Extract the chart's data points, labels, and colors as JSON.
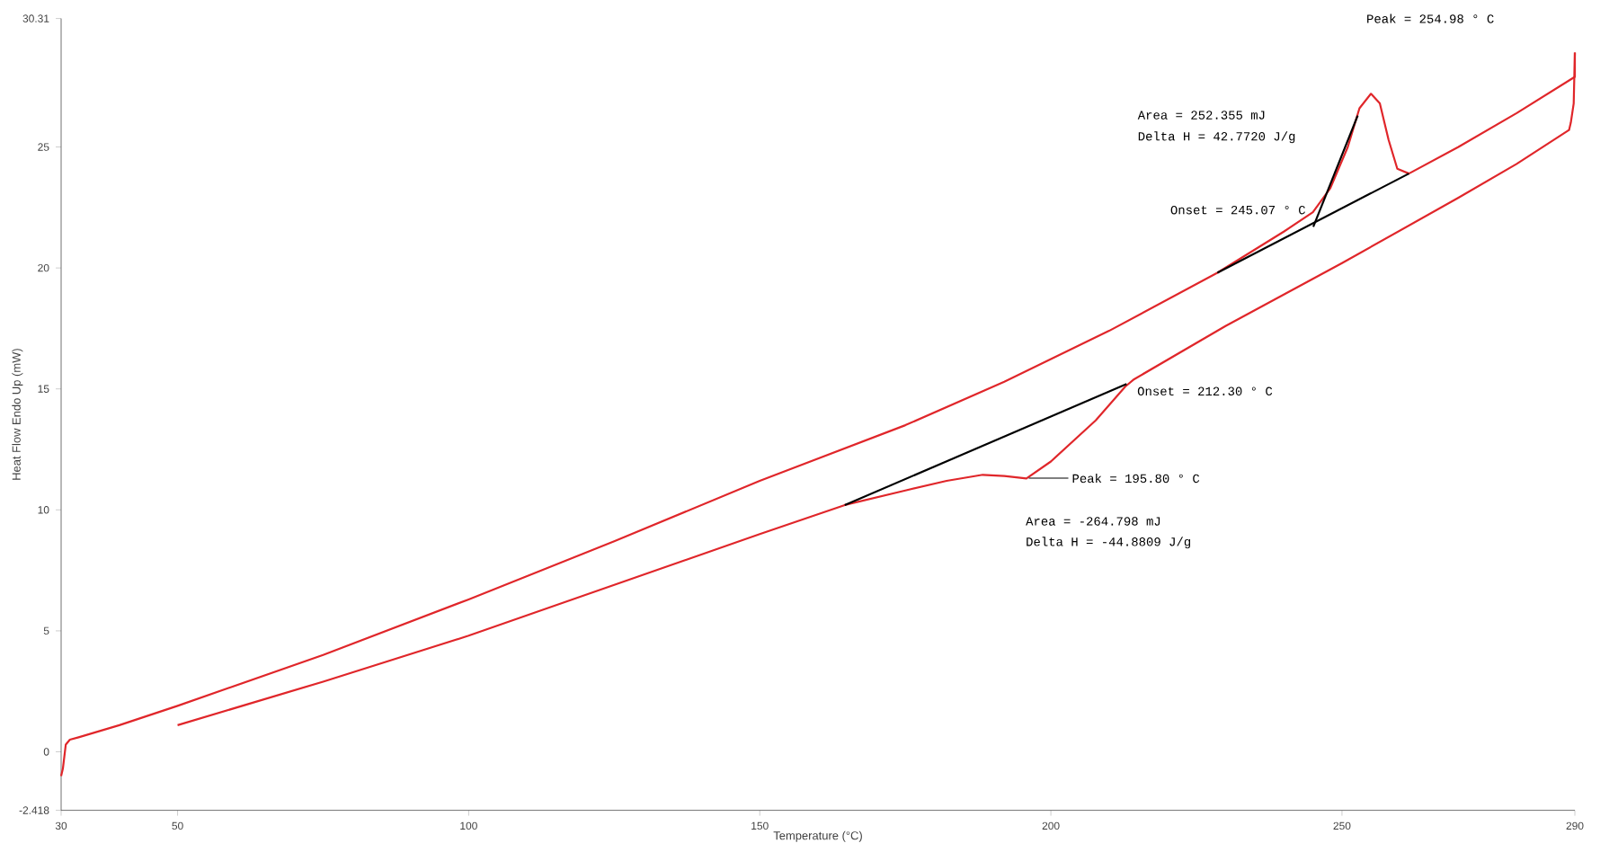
{
  "chart_data": {
    "type": "line",
    "xlabel": "Temperature (°C)",
    "ylabel": "Heat Flow Endo Up (mW)",
    "xlim": [
      30,
      290
    ],
    "xticks": [
      30,
      50,
      100,
      150,
      200,
      250,
      290
    ],
    "ylim": [
      -2.418,
      30.31
    ],
    "yticks": [
      -2.418,
      0,
      5,
      10,
      15,
      20,
      25,
      30.31
    ],
    "grid": false,
    "series": [
      {
        "color": "#e0262a",
        "x": [
          30,
          30.3,
          30.8,
          31.5,
          33,
          40,
          50,
          75,
          100,
          125,
          150,
          175,
          192,
          210,
          228.6,
          240,
          245,
          248,
          251,
          253,
          254.98,
          256.5,
          258,
          259.5,
          261.5,
          270,
          280,
          290,
          290
        ],
        "values": [
          -1.0,
          -0.7,
          0.3,
          0.5,
          0.6,
          1.1,
          1.9,
          4.0,
          6.3,
          8.7,
          11.2,
          13.5,
          15.3,
          17.4,
          19.8,
          21.5,
          22.3,
          23.3,
          25.0,
          26.6,
          27.2,
          26.8,
          25.3,
          24.1,
          23.9,
          25.0,
          26.4,
          27.9,
          28.9
        ]
      },
      {
        "color": "#e0262a",
        "x": [
          290,
          289.8,
          289.3,
          289,
          280,
          270,
          250,
          230,
          214.3,
          212.8,
          207.7,
          200,
          195.8,
          192,
          188.3,
          182.1,
          175,
          164.6,
          150,
          125,
          100,
          75,
          50
        ],
        "values": [
          28.9,
          26.8,
          26.0,
          25.7,
          24.3,
          22.9,
          20.2,
          17.6,
          15.4,
          15.1,
          13.7,
          12.0,
          11.3,
          11.4,
          11.45,
          11.2,
          10.8,
          10.2,
          9.0,
          6.9,
          4.8,
          2.9,
          1.1
        ]
      },
      {
        "color": "#000000",
        "x": [
          228.6,
          261.5
        ],
        "values": [
          19.8,
          23.9
        ]
      },
      {
        "color": "#000000",
        "x": [
          245.07,
          252.7
        ],
        "values": [
          21.7,
          26.3
        ]
      },
      {
        "color": "#000000",
        "x": [
          164.6,
          213.0
        ],
        "values": [
          10.2,
          15.2
        ]
      }
    ],
    "annotations": [
      "Peak = 254.98 ° C",
      "Area = 252.355 mJ",
      "Delta H = 42.7720 J/g",
      {
        "text": "Onset = 245.07 ° C",
        "x": 245.07,
        "y": 21.8
      },
      {
        "text": "Onset = 212.30 ° C",
        "x": 212.3,
        "y": 15.2
      },
      "Peak = 195.80 ° C",
      "Area = -264.798 mJ",
      "Delta H = -44.8809 J/g"
    ]
  }
}
